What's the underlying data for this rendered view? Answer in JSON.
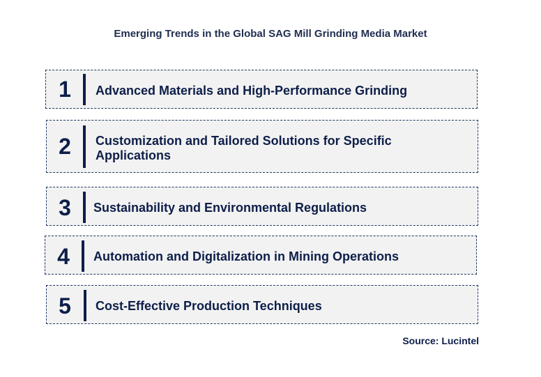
{
  "title": "Emerging Trends in the Global SAG Mill Grinding Media Market",
  "trends": [
    {
      "number": "1",
      "text": "Advanced Materials and High-Performance Grinding"
    },
    {
      "number": "2",
      "text": "Customization and Tailored Solutions for Specific Applications"
    },
    {
      "number": "3",
      "text": "Sustainability and Environmental Regulations"
    },
    {
      "number": "4",
      "text": "Automation and Digitalization in Mining Operations"
    },
    {
      "number": "5",
      "text": "Cost-Effective Production Techniques"
    }
  ],
  "source": "Source: Lucintel",
  "colors": {
    "text": "#0d1e49",
    "box_border": "#1f3864",
    "box_fill": "#f2f2f2"
  }
}
